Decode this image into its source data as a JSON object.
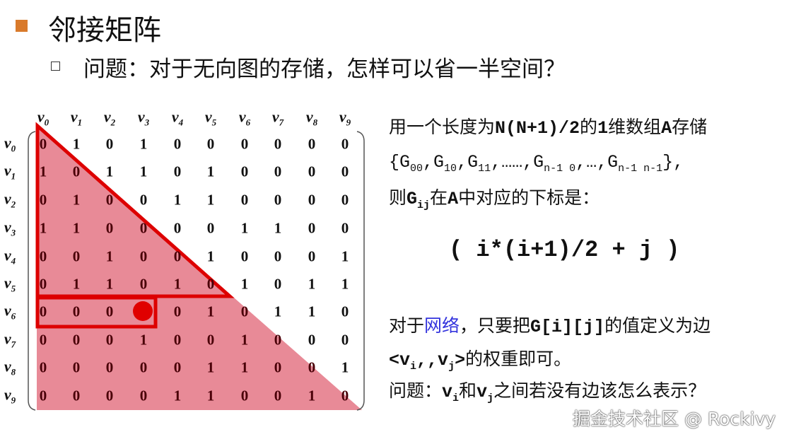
{
  "title": "邻接矩阵",
  "question": "问题：对于无向图的存储，怎样可以省一半空间？",
  "labels": [
    "v0",
    "v1",
    "v2",
    "v3",
    "v4",
    "v5",
    "v6",
    "v7",
    "v8",
    "v9"
  ],
  "matrix": [
    [
      0,
      1,
      0,
      1,
      0,
      0,
      0,
      0,
      0,
      0
    ],
    [
      1,
      0,
      1,
      1,
      0,
      1,
      0,
      0,
      0,
      0
    ],
    [
      0,
      1,
      0,
      0,
      1,
      1,
      0,
      0,
      0,
      0
    ],
    [
      1,
      1,
      0,
      0,
      0,
      0,
      1,
      1,
      0,
      0
    ],
    [
      0,
      0,
      1,
      0,
      0,
      1,
      0,
      0,
      0,
      1
    ],
    [
      0,
      1,
      1,
      0,
      1,
      0,
      1,
      0,
      1,
      1
    ],
    [
      0,
      0,
      0,
      1,
      0,
      1,
      0,
      1,
      1,
      0
    ],
    [
      0,
      0,
      0,
      1,
      0,
      0,
      1,
      0,
      0,
      0
    ],
    [
      0,
      0,
      0,
      0,
      0,
      1,
      1,
      0,
      0,
      1
    ],
    [
      0,
      0,
      0,
      0,
      1,
      1,
      0,
      0,
      1,
      0
    ]
  ],
  "highlight_cell": {
    "row": 6,
    "col": 3
  },
  "colors": {
    "fill": "#e88a97",
    "outline": "#dd0000",
    "bullet": "#d97a2b",
    "link": "#3333dd"
  },
  "right": {
    "l1a": "用一个长度为",
    "l1b": "N(N+1)/2",
    "l1c": "的",
    "l1d": "1",
    "l1e": "维数组",
    "l1f": "A",
    "l1g": "存储",
    "l2": [
      "{G",
      "00",
      ",G",
      "10",
      ",G",
      "11",
      ",……,G",
      "n-1 0",
      ",…,G",
      "n-1 n-1",
      "},"
    ],
    "l3a": "则",
    "l3b": "G",
    "l3c": "ij",
    "l3d": "在",
    "l3e": "A",
    "l3f": "中对应的下标是：",
    "formula": "( i*(i+1)/2 + j )",
    "l4a": "对于",
    "l4b": "网络",
    "l4c": "，只要把",
    "l4d": "G[i][j]",
    "l4e": "的值定义为边",
    "l5a": "<v",
    "l5b": "i",
    ",": ",",
    "l5c": ",v",
    "l5d": "j",
    "l5e": ">",
    "l5f": "的权重即可。",
    "l6a": "问题：",
    "l6b": "v",
    "l6c": "i",
    "l6d": "和",
    "l6e": "v",
    "l6f": "j",
    "l6g": "之间若没有边该怎么表示？"
  },
  "watermark": "掘金技术社区 @ Rockivy"
}
